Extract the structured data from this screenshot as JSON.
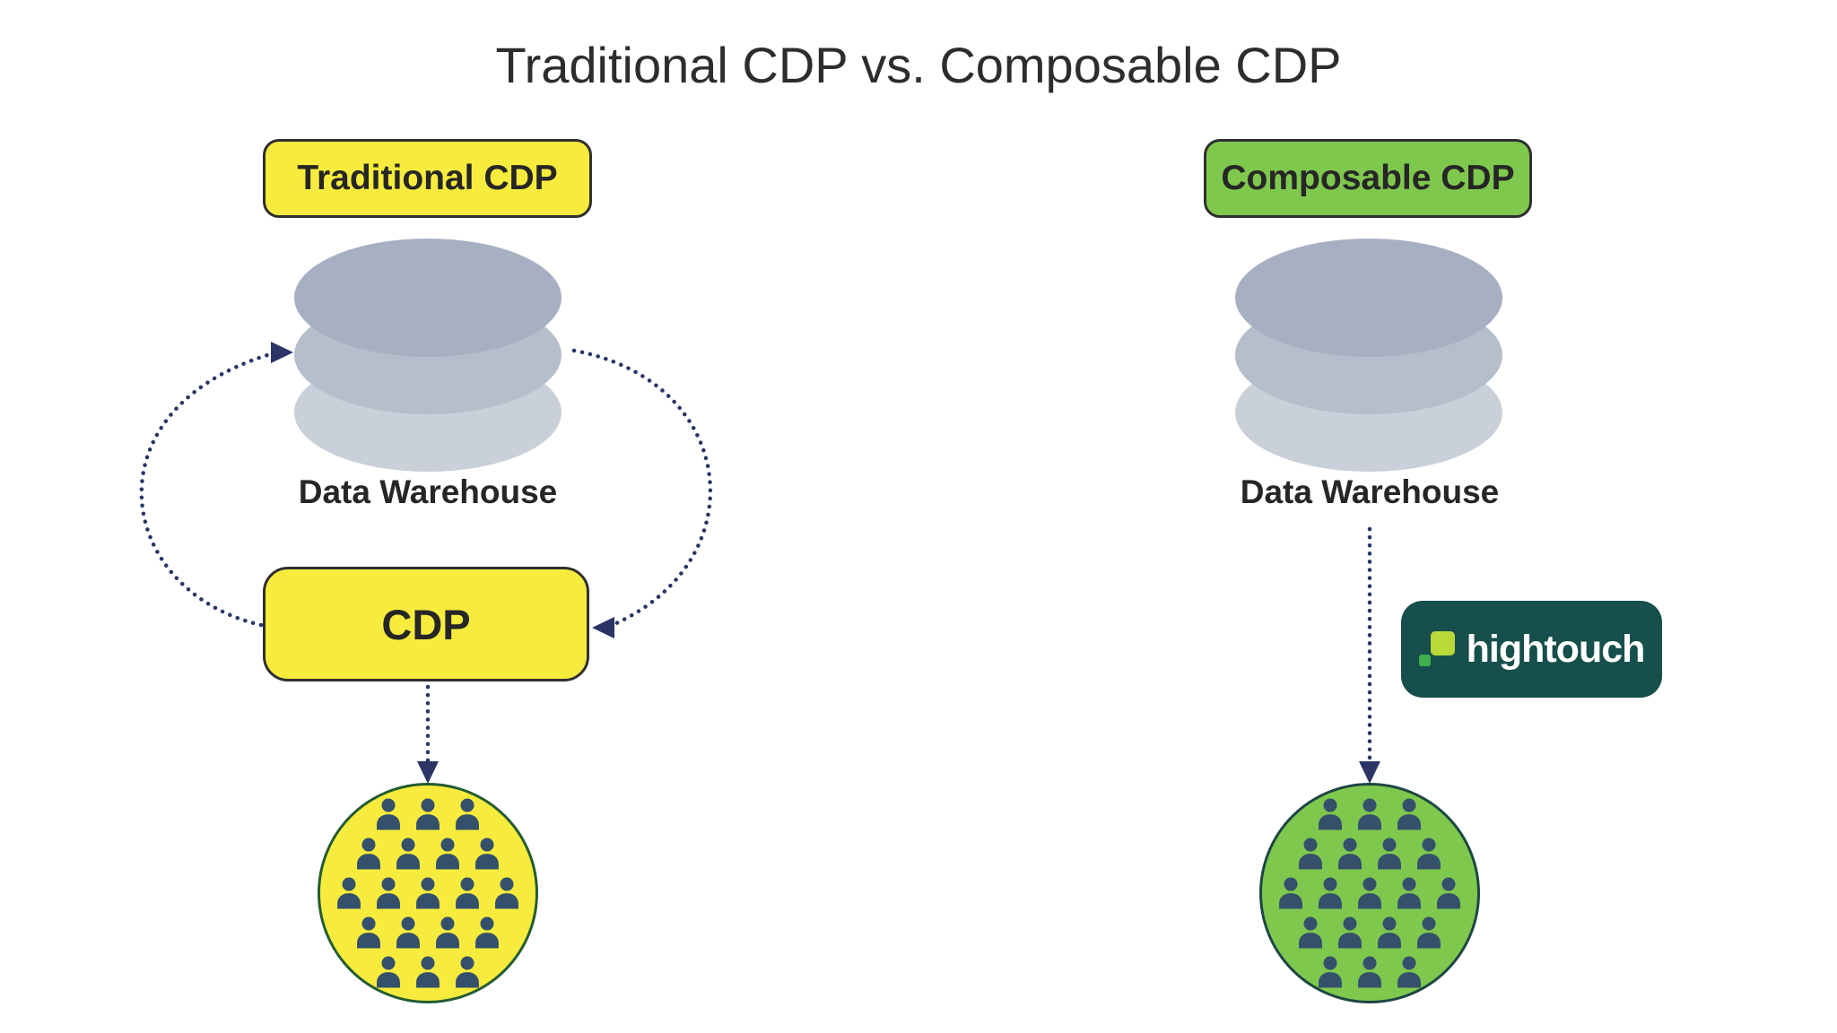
{
  "title": "Traditional CDP vs. Composable CDP",
  "left_panel": {
    "badge_label": "Traditional CDP",
    "warehouse_label": "Data Warehouse",
    "cdp_box_label": "CDP",
    "audience_rows": [
      3,
      4,
      5,
      4,
      3
    ]
  },
  "right_panel": {
    "badge_label": "Composable CDP",
    "warehouse_label": "Data Warehouse",
    "logo_label": "hightouch",
    "audience_rows": [
      3,
      4,
      5,
      4,
      3
    ]
  },
  "connections": [
    {
      "from": "cdp-box",
      "to": "data-warehouse-left",
      "style": "dotted-curve-arrow"
    },
    {
      "from": "data-warehouse-left",
      "to": "cdp-box",
      "style": "dotted-curve-arrow"
    },
    {
      "from": "cdp-box",
      "to": "audience-left",
      "style": "dotted-line-arrow"
    },
    {
      "from": "data-warehouse-right",
      "to": "audience-right",
      "style": "dotted-line-arrow"
    }
  ],
  "icons": {
    "database": "stacked-disc-cylinder",
    "person": "user-silhouette",
    "hightouch_mark": "two-offset-squares"
  },
  "colors": {
    "traditional_accent": "#f7ec3d",
    "composable_accent": "#7fc84e",
    "arrow": "#2a3566",
    "person": "#34506b",
    "warehouse_disc_top": "#a6b0c2",
    "warehouse_disc_mid": "#b5becb",
    "warehouse_disc_bottom": "#cad0d9",
    "hightouch_bg": "#164f4b",
    "hightouch_lime": "#b8d938",
    "hightouch_green": "#3faf4f",
    "text": "#2d2d2d"
  }
}
